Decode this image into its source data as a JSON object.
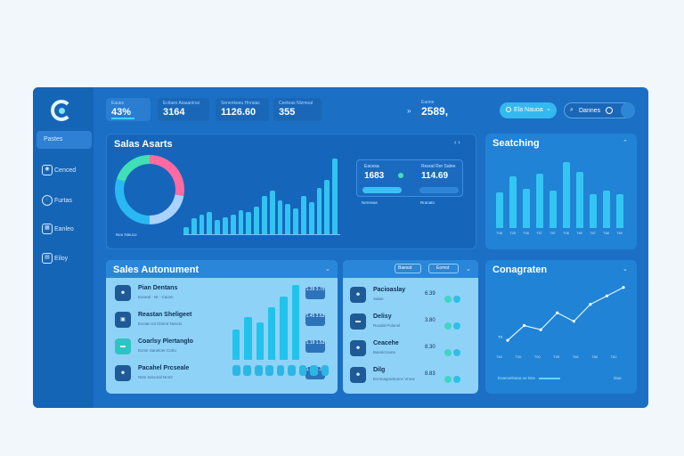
{
  "sidebar": {
    "items": [
      {
        "label": "Pastes",
        "icon": "dashboard-icon"
      },
      {
        "label": "Cenced",
        "icon": "camera-icon"
      },
      {
        "label": "Furtas",
        "icon": "globe-icon"
      },
      {
        "label": "Eanleo",
        "icon": "grid-icon"
      },
      {
        "label": "Eiloy",
        "icon": "folder-icon"
      }
    ]
  },
  "header": {
    "kpis": [
      {
        "caption": "Eaues",
        "value": "43%"
      },
      {
        "caption": "Ecitaes Aiaaaninai",
        "value": "3164"
      },
      {
        "caption": "Senenkeeu Hnraiac",
        "value": "1126.60"
      },
      {
        "caption": "Ceeteas Nlzmoal",
        "value": "355"
      }
    ],
    "total_prefix": "»",
    "total_caption": "Eaone",
    "total_value": "2589,",
    "status_pill": "Ela Nauoa",
    "search_label": "Dannes"
  },
  "sales_alerts": {
    "title": "Salas Asarts",
    "legend": "Neu Nieuco",
    "bars": [
      7,
      16,
      20,
      22,
      14,
      17,
      20,
      24,
      22,
      28,
      38,
      44,
      34,
      30,
      26,
      38,
      32,
      46,
      54,
      76
    ],
    "stat_a_caption": "Eacesa",
    "stat_a_value": "1683",
    "stat_a_sub": "Nenseas",
    "stat_b_caption": "Resrat Rer Salne",
    "stat_b_value": "114.69",
    "stat_b_sub": "Rranatn",
    "donut": [
      {
        "label": "pink",
        "value": 28,
        "color": "#ff6aa2"
      },
      {
        "label": "lightblue",
        "value": 22,
        "color": "#a9d3ff"
      },
      {
        "label": "cyan",
        "value": 30,
        "color": "#2ab8f5"
      },
      {
        "label": "green",
        "value": 20,
        "color": "#3fe0b5"
      }
    ]
  },
  "seatching": {
    "title": "Seatching",
    "bars": [
      38,
      55,
      42,
      58,
      40,
      70,
      60,
      36,
      40,
      36
    ],
    "ticks": [
      "T08",
      "T28",
      "T08",
      "T87",
      "T87",
      "T08",
      "T89",
      "T87",
      "T88",
      "T89"
    ]
  },
  "sales_automent": {
    "title": "Sales Autonument",
    "rows": [
      {
        "name": "Pian Dentans",
        "sub": "Eoneal · Nt · Cacen",
        "value": "1.39 3.75"
      },
      {
        "name": "Reastan Sheligeet",
        "sub": "Ecctan Iol Cbnmt Nosclo",
        "value": "1.45 3.53"
      },
      {
        "name": "Coarlsy Plertanglo",
        "sub": "Ecmn Saneloer Corlu",
        "value": "1.19 1.53"
      },
      {
        "name": "Pacahel Prcseale",
        "sub": "Nstn Sencnal Nnmr",
        "value": "1.38 1.38"
      }
    ],
    "bars_tall": [
      32,
      46,
      40,
      56,
      68,
      80
    ],
    "bars_short": [
      10,
      10,
      10,
      10,
      10,
      10,
      10,
      10,
      10
    ]
  },
  "team": {
    "filter_a": "Baesot",
    "filter_b": "Eomot",
    "rows": [
      {
        "name": "Pacioaslay",
        "sub": "Salan",
        "value": "6.39"
      },
      {
        "name": "Delisy",
        "sub": "Rocdal Polanel",
        "value": "3.80"
      },
      {
        "name": "Ceacehe",
        "sub": "Basolcrouns",
        "value": "8.30"
      },
      {
        "name": "Dilg",
        "sub": "Ecmnagrantunce Vnrac",
        "value": "8.83"
      }
    ]
  },
  "conagraten": {
    "title": "Conagraten",
    "line": [
      10,
      24,
      20,
      36,
      28,
      44,
      52,
      60
    ],
    "y_tick": "T0",
    "x_ticks": [
      "T60",
      "T00",
      "T00",
      "T09",
      "T06",
      "T80",
      "T60"
    ],
    "legend": "Eoanoelnana oe Bne",
    "legend_right": "Ooo"
  }
}
